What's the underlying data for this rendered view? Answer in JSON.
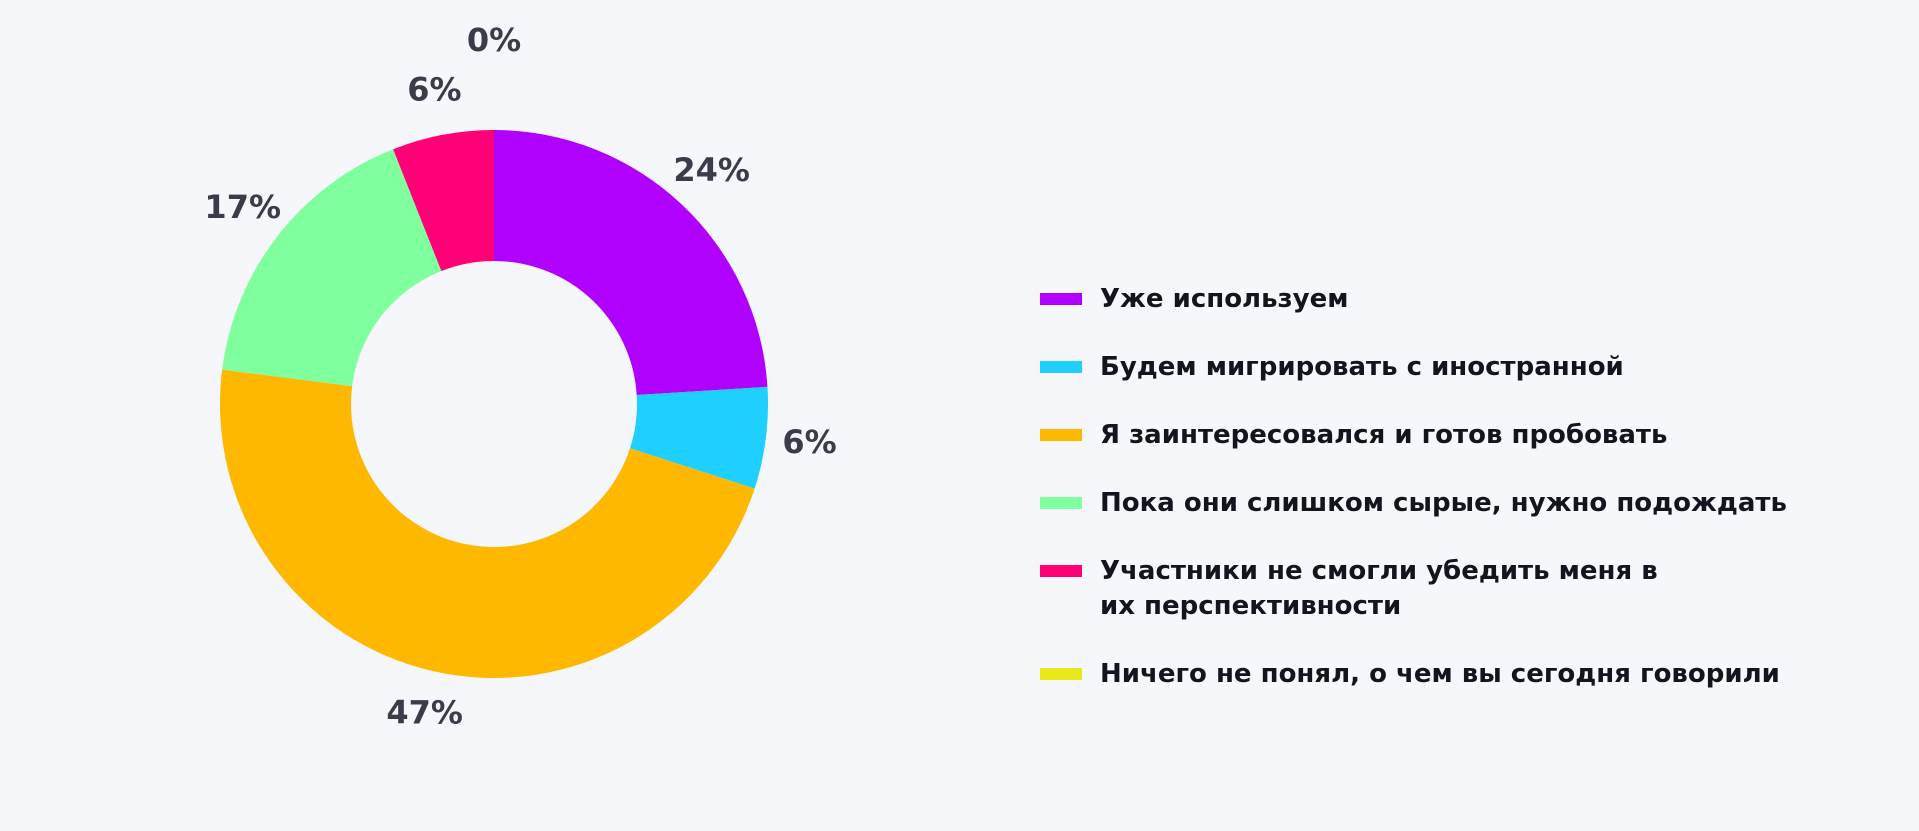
{
  "chart_data": {
    "type": "pie",
    "variant": "donut",
    "categories": [
      "Уже используем",
      "Будем мигрировать с иностранной",
      "Я заинтересовался и готов пробовать",
      "Пока они слишком сырые, нужно подождать",
      "Участники не смогли убедить меня в их перспективности",
      "Ничего не понял, о чем вы сегодня говорили"
    ],
    "values": [
      24,
      6,
      47,
      17,
      6,
      0
    ],
    "value_labels": [
      "24%",
      "6%",
      "47%",
      "17%",
      "6%",
      "0%"
    ],
    "colors": [
      "#b000ff",
      "#1ecfff",
      "#ffb800",
      "#80ff9e",
      "#ff0077",
      "#e8e81a"
    ],
    "legend_position": "right",
    "start_angle": "top, clockwise"
  }
}
